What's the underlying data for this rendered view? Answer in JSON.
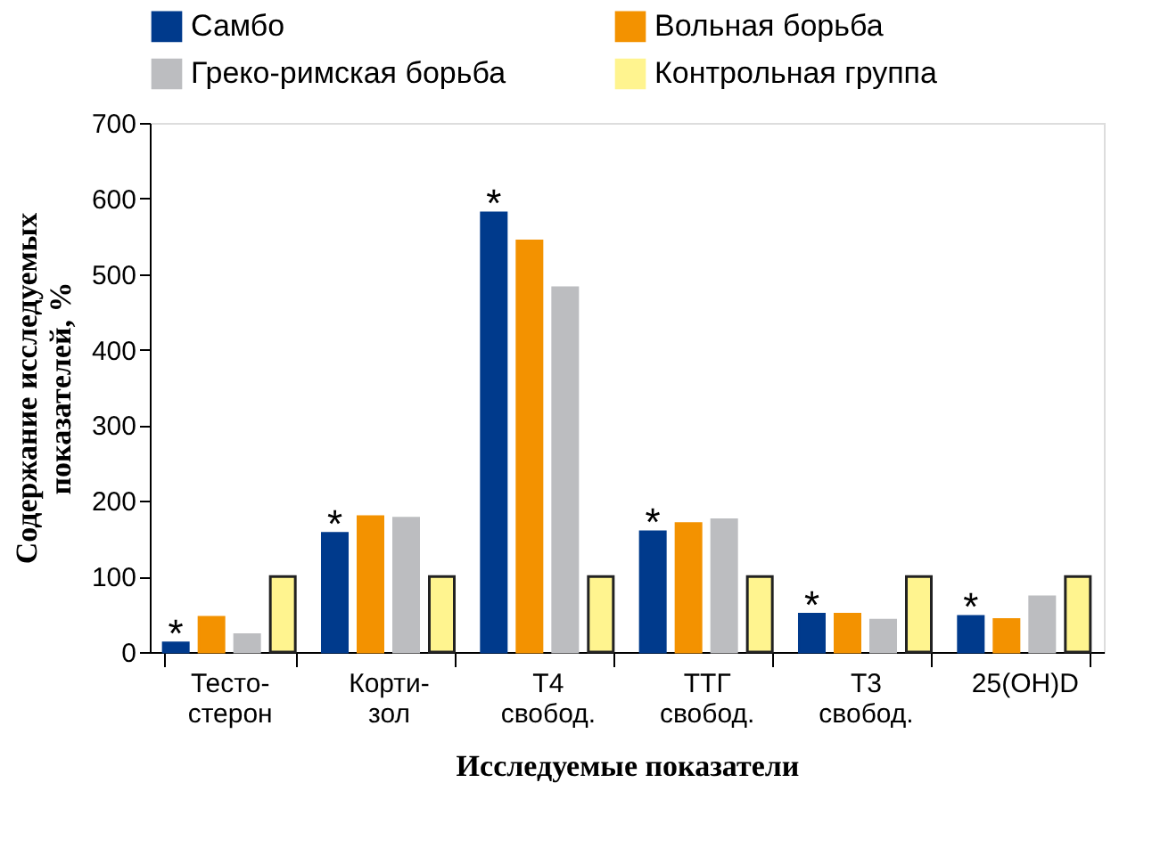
{
  "chart_data": {
    "type": "bar",
    "xlabel": "Исследуемые показатели",
    "ylabel": "Содержание исследуемых\nпоказателей, %",
    "categories": [
      "Тесто-\nстерон",
      "Корти-\nзол",
      "Т4\nсвобод.",
      "ТТГ\nсвобод.",
      "Т3\nсвобод.",
      "25(OH)D"
    ],
    "series": [
      {
        "name": "Самбо",
        "color": "#003a8c",
        "values": [
          12,
          157,
          581,
          159,
          50,
          47
        ]
      },
      {
        "name": "Вольная борьба",
        "color": "#f39200",
        "values": [
          46,
          179,
          544,
          170,
          50,
          43
        ]
      },
      {
        "name": "Греко-римская борьба",
        "color": "#bcbdc0",
        "values": [
          23,
          177,
          482,
          175,
          42,
          73
        ]
      },
      {
        "name": "Контрольная группа",
        "color": "#fff48f",
        "values": [
          100,
          100,
          100,
          100,
          100,
          100
        ]
      }
    ],
    "ylim": [
      0,
      700
    ],
    "yticks": [
      0,
      100,
      200,
      300,
      400,
      500,
      600,
      700
    ],
    "grid": false,
    "legend": "top",
    "annotations": [
      "*",
      "*",
      "*",
      "*",
      "*",
      "*"
    ]
  }
}
